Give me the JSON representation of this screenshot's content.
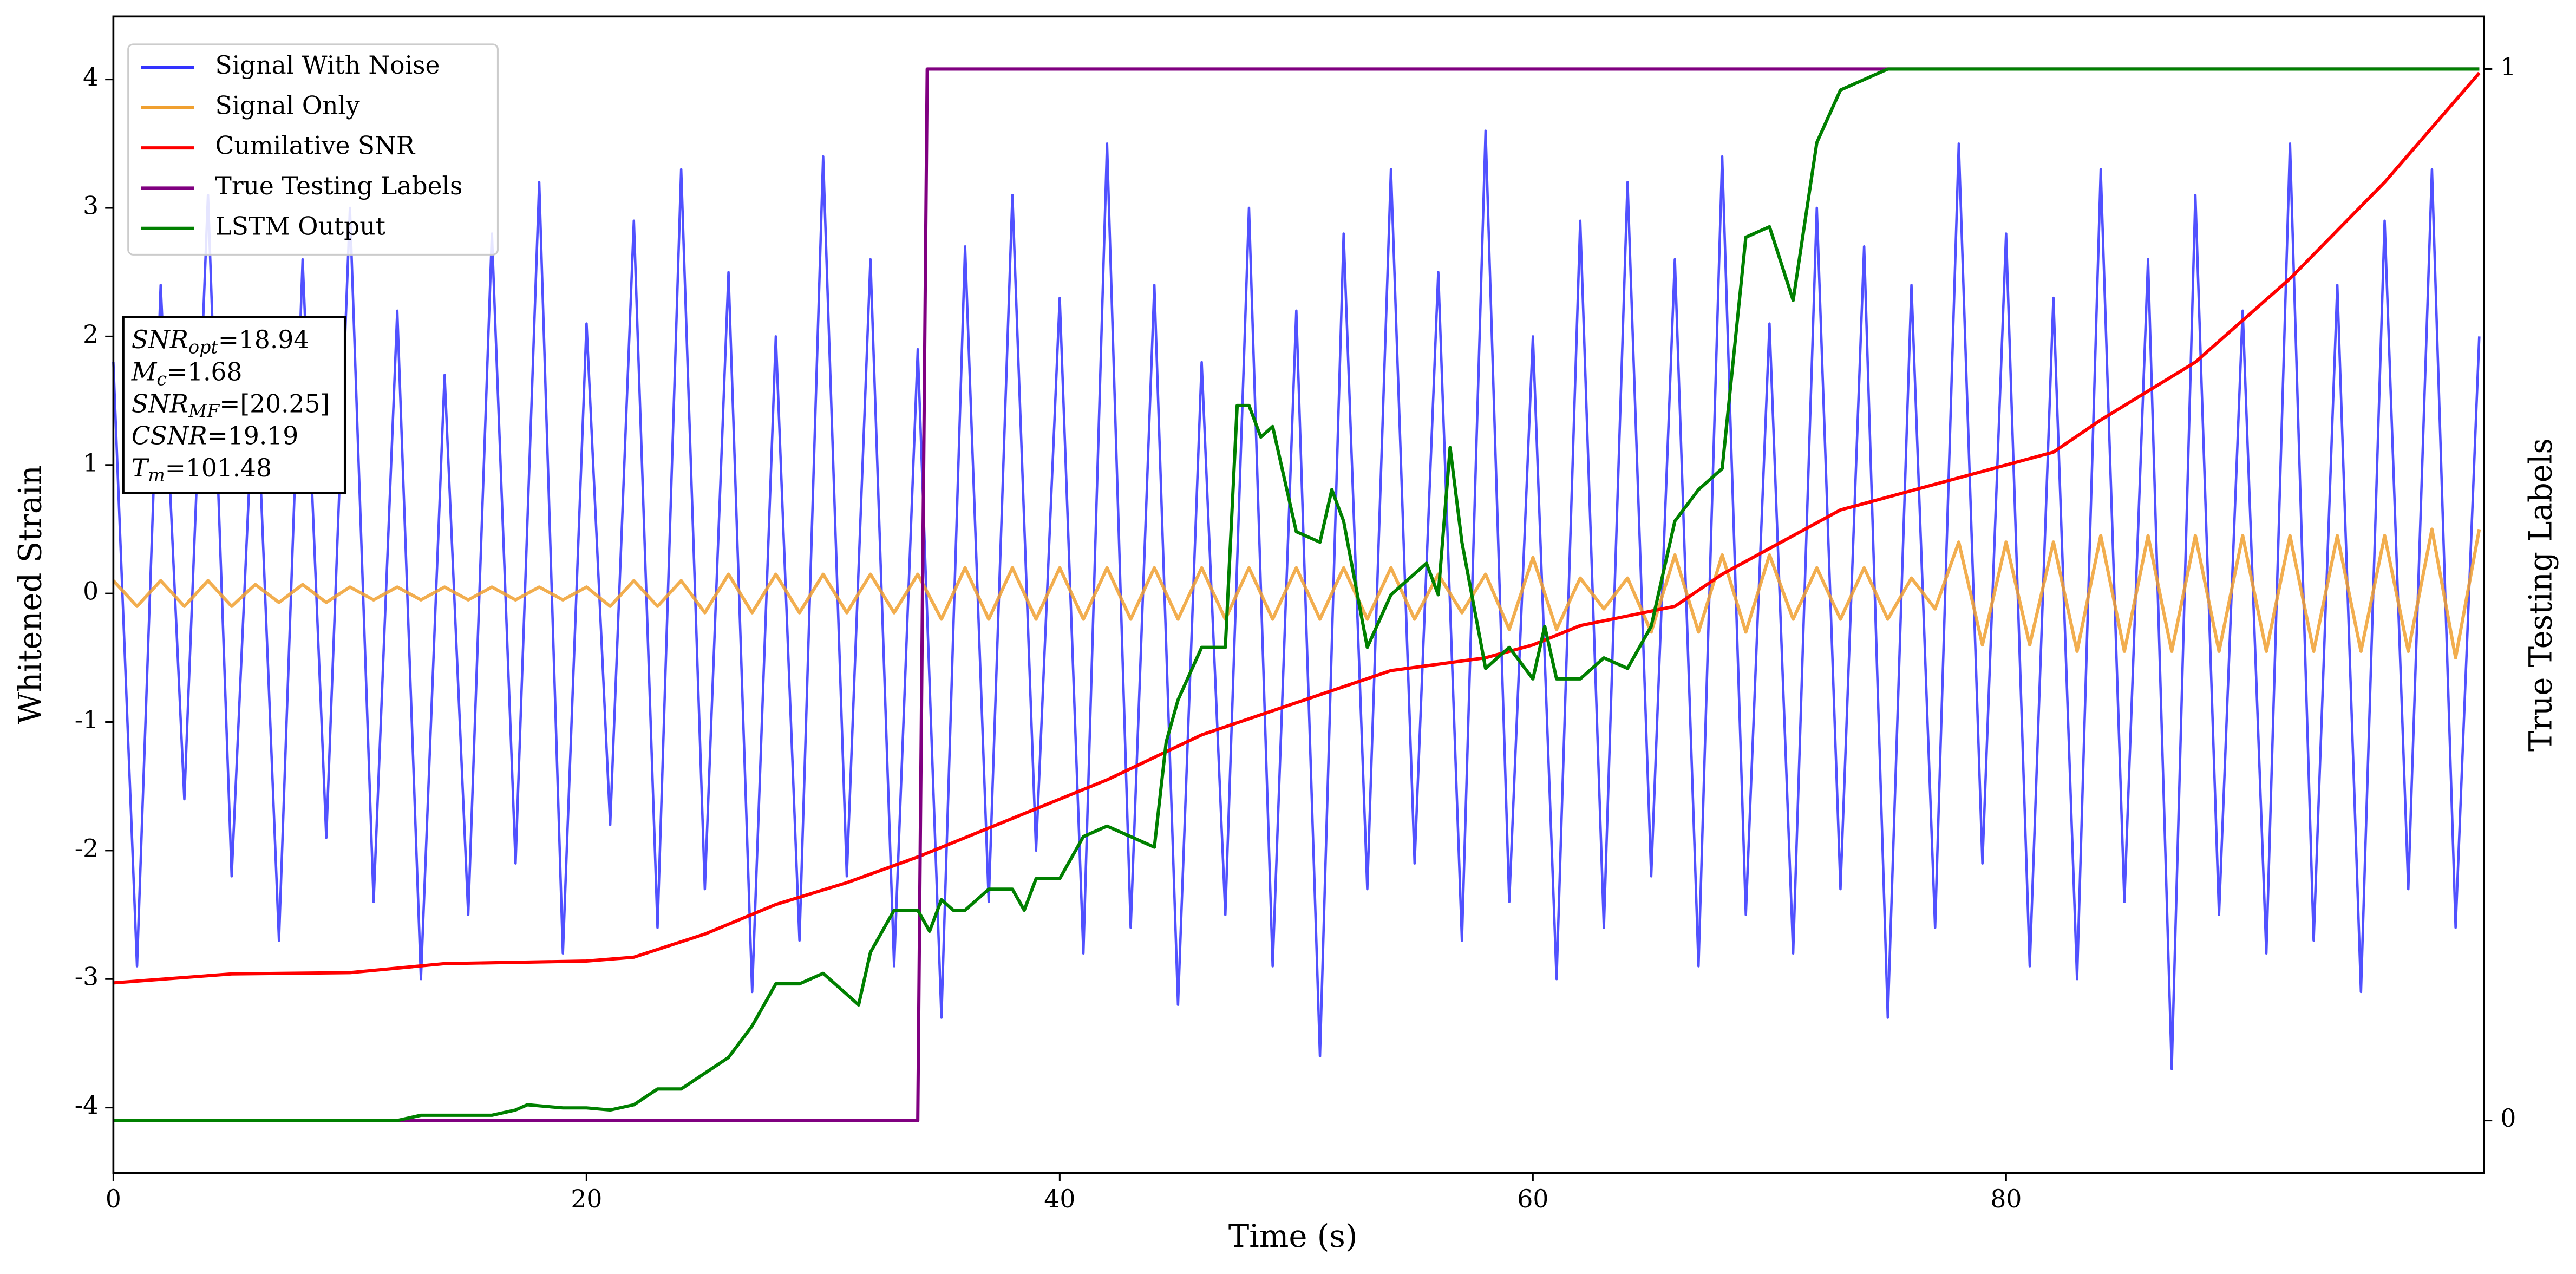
{
  "chart_data": {
    "type": "line",
    "x_label": "Time (s)",
    "y_label": "Whitened Strain",
    "y2_label": "True Testing Labels",
    "xlim": [
      0,
      100.2
    ],
    "ylim": [
      -4.51,
      4.49
    ],
    "y2lim": [
      -0.05,
      1.05
    ],
    "xticks": [
      0,
      20,
      40,
      60,
      80
    ],
    "yticks": [
      -4,
      -3,
      -2,
      -1,
      0,
      1,
      2,
      3,
      4
    ],
    "y2ticks": [
      0,
      1
    ],
    "x": [
      0,
      1,
      2,
      3,
      4,
      5,
      6,
      7,
      8,
      9,
      10,
      11,
      12,
      13,
      14,
      15,
      16,
      17,
      18,
      19,
      20,
      21,
      22,
      23,
      24,
      25,
      26,
      27,
      28,
      29,
      30,
      31,
      32,
      33,
      34,
      35,
      36,
      37,
      38,
      39,
      40,
      41,
      42,
      43,
      44,
      45,
      46,
      47,
      48,
      49,
      50,
      51,
      52,
      53,
      54,
      55,
      56,
      57,
      58,
      59,
      60,
      61,
      62,
      63,
      64,
      65,
      66,
      67,
      68,
      69,
      70,
      71,
      72,
      73,
      74,
      75,
      76,
      77,
      78,
      79,
      80,
      81,
      82,
      83,
      84,
      85,
      86,
      87,
      88,
      89,
      90,
      91,
      92,
      93,
      94,
      95,
      96,
      97,
      98,
      99,
      100
    ],
    "series": [
      {
        "name": "Signal With Noise",
        "color": "#3333ff",
        "values": [
          1.8,
          -2.9,
          2.4,
          -1.6,
          3.1,
          -2.2,
          1.9,
          -2.7,
          2.6,
          -1.9,
          3.0,
          -2.4,
          2.2,
          -3.0,
          1.7,
          -2.5,
          2.8,
          -2.1,
          3.2,
          -2.8,
          2.1,
          -1.8,
          2.9,
          -2.6,
          3.3,
          -2.3,
          2.5,
          -3.1,
          2.0,
          -2.7,
          3.4,
          -2.2,
          2.6,
          -2.9,
          1.9,
          -3.3,
          2.7,
          -2.4,
          3.1,
          -2.0,
          2.3,
          -2.8,
          3.5,
          -2.6,
          2.4,
          -3.2,
          1.8,
          -2.5,
          3.0,
          -2.9,
          2.2,
          -3.6,
          2.8,
          -2.3,
          3.3,
          -2.1,
          2.5,
          -2.7,
          3.6,
          -2.4,
          2.0,
          -3.0,
          2.9,
          -2.6,
          3.2,
          -2.2,
          2.6,
          -2.9,
          3.4,
          -2.5,
          2.1,
          -2.8,
          3.0,
          -2.3,
          2.7,
          -3.3,
          2.4,
          -2.6,
          3.5,
          -2.1,
          2.8,
          -2.9,
          2.3,
          -3.0,
          3.3,
          -2.4,
          2.6,
          -3.7,
          3.1,
          -2.5,
          2.2,
          -2.8,
          3.5,
          -2.7,
          2.4,
          -3.1,
          2.9,
          -2.3,
          3.3,
          -2.6,
          2.0
        ]
      },
      {
        "name": "Signal Only",
        "color": "#f0a030",
        "values": [
          0.1,
          -0.1,
          0.1,
          -0.1,
          0.1,
          -0.1,
          0.07,
          -0.07,
          0.07,
          -0.07,
          0.05,
          -0.05,
          0.05,
          -0.05,
          0.05,
          -0.05,
          0.05,
          -0.05,
          0.05,
          -0.05,
          0.05,
          -0.1,
          0.1,
          -0.1,
          0.1,
          -0.15,
          0.15,
          -0.15,
          0.15,
          -0.15,
          0.15,
          -0.15,
          0.15,
          -0.15,
          0.15,
          -0.2,
          0.2,
          -0.2,
          0.2,
          -0.2,
          0.2,
          -0.2,
          0.2,
          -0.2,
          0.2,
          -0.2,
          0.2,
          -0.2,
          0.2,
          -0.2,
          0.2,
          -0.2,
          0.2,
          -0.2,
          0.2,
          -0.2,
          0.15,
          -0.15,
          0.15,
          -0.28,
          0.28,
          -0.28,
          0.12,
          -0.12,
          0.12,
          -0.3,
          0.3,
          -0.3,
          0.3,
          -0.3,
          0.3,
          -0.2,
          0.2,
          -0.2,
          0.2,
          -0.2,
          0.12,
          -0.12,
          0.4,
          -0.4,
          0.4,
          -0.4,
          0.4,
          -0.45,
          0.45,
          -0.45,
          0.45,
          -0.45,
          0.45,
          -0.45,
          0.45,
          -0.45,
          0.45,
          -0.45,
          0.45,
          -0.45,
          0.45,
          -0.45,
          0.5,
          -0.5,
          0.5
        ]
      },
      {
        "name": "Cumilative SNR",
        "color": "#ff0000",
        "x": [
          0,
          5,
          10,
          14,
          20,
          22,
          25,
          28,
          31,
          34,
          38,
          42,
          46,
          50,
          54,
          58,
          60,
          62,
          66,
          68,
          70,
          73,
          76,
          79,
          82,
          84,
          88,
          92,
          96,
          100
        ],
        "values": [
          -3.03,
          -2.96,
          -2.95,
          -2.88,
          -2.86,
          -2.83,
          -2.65,
          -2.42,
          -2.25,
          -2.05,
          -1.75,
          -1.45,
          -1.1,
          -0.85,
          -0.6,
          -0.5,
          -0.4,
          -0.25,
          -0.1,
          0.15,
          0.35,
          0.65,
          0.8,
          0.95,
          1.1,
          1.35,
          1.8,
          2.45,
          3.2,
          4.05
        ]
      },
      {
        "name": "True Testing Labels",
        "color": "#800080",
        "axis": "y2",
        "x": [
          0,
          34,
          34.4,
          100
        ],
        "values": [
          0,
          0,
          1,
          1
        ]
      },
      {
        "name": "LSTM Output",
        "color": "#008000",
        "axis": "y2",
        "x": [
          0,
          12,
          13,
          16,
          17,
          17.5,
          19,
          20,
          21,
          22,
          23,
          24,
          25,
          26,
          27,
          28,
          29,
          30,
          31,
          31.5,
          32,
          33,
          34,
          34.5,
          35,
          35.5,
          36,
          37,
          38,
          38.5,
          39,
          40,
          41,
          42,
          43,
          44,
          44.5,
          45,
          46,
          47,
          47.5,
          48,
          48.5,
          49,
          50,
          51,
          51.5,
          52,
          53,
          54,
          55,
          55.5,
          56,
          56.5,
          57,
          58,
          59,
          60,
          60.5,
          61,
          62,
          63,
          64,
          65,
          66,
          67,
          68,
          69,
          70,
          71,
          72,
          73,
          75,
          80,
          100
        ],
        "values": [
          0,
          0,
          0.005,
          0.005,
          0.01,
          0.015,
          0.012,
          0.012,
          0.01,
          0.015,
          0.03,
          0.03,
          0.045,
          0.06,
          0.09,
          0.13,
          0.13,
          0.14,
          0.12,
          0.11,
          0.16,
          0.2,
          0.2,
          0.18,
          0.21,
          0.2,
          0.2,
          0.22,
          0.22,
          0.2,
          0.23,
          0.23,
          0.27,
          0.28,
          0.27,
          0.26,
          0.36,
          0.4,
          0.45,
          0.45,
          0.68,
          0.68,
          0.65,
          0.66,
          0.56,
          0.55,
          0.6,
          0.57,
          0.45,
          0.5,
          0.52,
          0.53,
          0.5,
          0.64,
          0.55,
          0.43,
          0.45,
          0.42,
          0.47,
          0.42,
          0.42,
          0.44,
          0.43,
          0.47,
          0.57,
          0.6,
          0.62,
          0.84,
          0.85,
          0.78,
          0.93,
          0.98,
          1,
          1,
          1
        ]
      }
    ],
    "annotation": [
      {
        "symbol": "SNR",
        "sub": "opt",
        "text": "=18.94"
      },
      {
        "symbol": "M",
        "sub": "c",
        "text": "=1.68"
      },
      {
        "symbol": "SNR",
        "sub": "MF",
        "text": "=[20.25]"
      },
      {
        "symbol": "CSNR",
        "text": "=19.19"
      },
      {
        "symbol": "T",
        "sub": "m",
        "text": "=101.48"
      }
    ]
  }
}
